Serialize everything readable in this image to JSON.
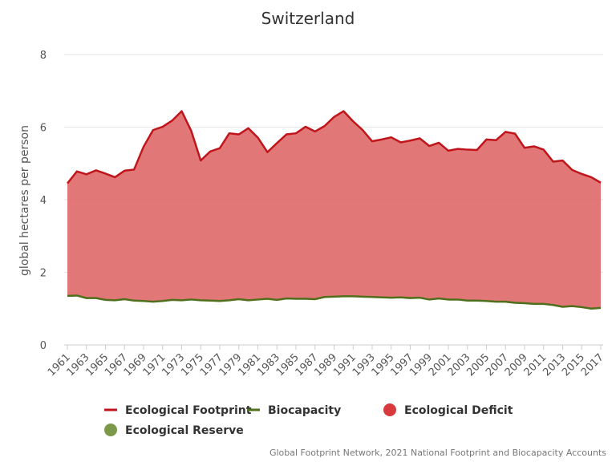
{
  "chart_data": {
    "type": "area",
    "title": "Switzerland",
    "xlabel": "",
    "ylabel": "global hectares per person",
    "ylim": [
      0,
      8
    ],
    "yticks": [
      0,
      2,
      4,
      6,
      8
    ],
    "xticks": [
      "1961",
      "1963",
      "1965",
      "1967",
      "1969",
      "1971",
      "1973",
      "1975",
      "1977",
      "1979",
      "1981",
      "1983",
      "1985",
      "1987",
      "1989",
      "1991",
      "1993",
      "1995",
      "1997",
      "1999",
      "2001",
      "2003",
      "2005",
      "2007",
      "2009",
      "2011",
      "2013",
      "2015",
      "2017"
    ],
    "grid": true,
    "legend_position": "bottom",
    "x": [
      1961,
      1962,
      1963,
      1964,
      1965,
      1966,
      1967,
      1968,
      1969,
      1970,
      1971,
      1972,
      1973,
      1974,
      1975,
      1976,
      1977,
      1978,
      1979,
      1980,
      1981,
      1982,
      1983,
      1984,
      1985,
      1986,
      1987,
      1988,
      1989,
      1990,
      1991,
      1992,
      1993,
      1994,
      1995,
      1996,
      1997,
      1998,
      1999,
      2000,
      2001,
      2002,
      2003,
      2004,
      2005,
      2006,
      2007,
      2008,
      2009,
      2010,
      2011,
      2012,
      2013,
      2014,
      2015,
      2016,
      2017
    ],
    "series": [
      {
        "name": "Ecological Footprint",
        "color": "#c0151b",
        "values": [
          4.45,
          4.78,
          4.7,
          4.81,
          4.72,
          4.62,
          4.8,
          4.83,
          5.46,
          5.92,
          6.01,
          6.18,
          6.44,
          5.9,
          5.08,
          5.33,
          5.42,
          5.83,
          5.8,
          5.97,
          5.71,
          5.31,
          5.56,
          5.8,
          5.83,
          6.01,
          5.88,
          6.03,
          6.28,
          6.44,
          6.16,
          5.92,
          5.61,
          5.66,
          5.72,
          5.58,
          5.63,
          5.69,
          5.48,
          5.57,
          5.35,
          5.4,
          5.38,
          5.37,
          5.66,
          5.64,
          5.87,
          5.82,
          5.43,
          5.47,
          5.38,
          5.05,
          5.08,
          4.82,
          4.71,
          4.62,
          4.47
        ]
      },
      {
        "name": "Biocapacity",
        "color": "#4f6f1b",
        "values": [
          1.35,
          1.36,
          1.29,
          1.29,
          1.24,
          1.23,
          1.26,
          1.22,
          1.21,
          1.19,
          1.21,
          1.24,
          1.23,
          1.25,
          1.23,
          1.22,
          1.21,
          1.23,
          1.26,
          1.23,
          1.25,
          1.27,
          1.24,
          1.28,
          1.27,
          1.27,
          1.26,
          1.32,
          1.33,
          1.34,
          1.34,
          1.33,
          1.32,
          1.31,
          1.3,
          1.31,
          1.29,
          1.3,
          1.25,
          1.28,
          1.25,
          1.25,
          1.22,
          1.22,
          1.21,
          1.19,
          1.19,
          1.16,
          1.15,
          1.13,
          1.13,
          1.1,
          1.05,
          1.07,
          1.04,
          1.0,
          1.02
        ]
      }
    ],
    "areas": [
      {
        "name": "Ecological Deficit",
        "color": "#e07070"
      },
      {
        "name": "Ecological Reserve",
        "color": "#7a9a4a"
      }
    ]
  },
  "legend": [
    {
      "label": "Ecological Footprint",
      "symbol": "line",
      "color": "#c0151b"
    },
    {
      "label": "Biocapacity",
      "symbol": "line",
      "color": "#4f6f1b"
    },
    {
      "label": "Ecological Deficit",
      "symbol": "circle",
      "color": "#d93a3e"
    },
    {
      "label": "Ecological Reserve",
      "symbol": "circle",
      "color": "#7a9a4a"
    }
  ],
  "credit": "Global Footprint Network, 2021 National Footprint and Biocapacity Accounts"
}
